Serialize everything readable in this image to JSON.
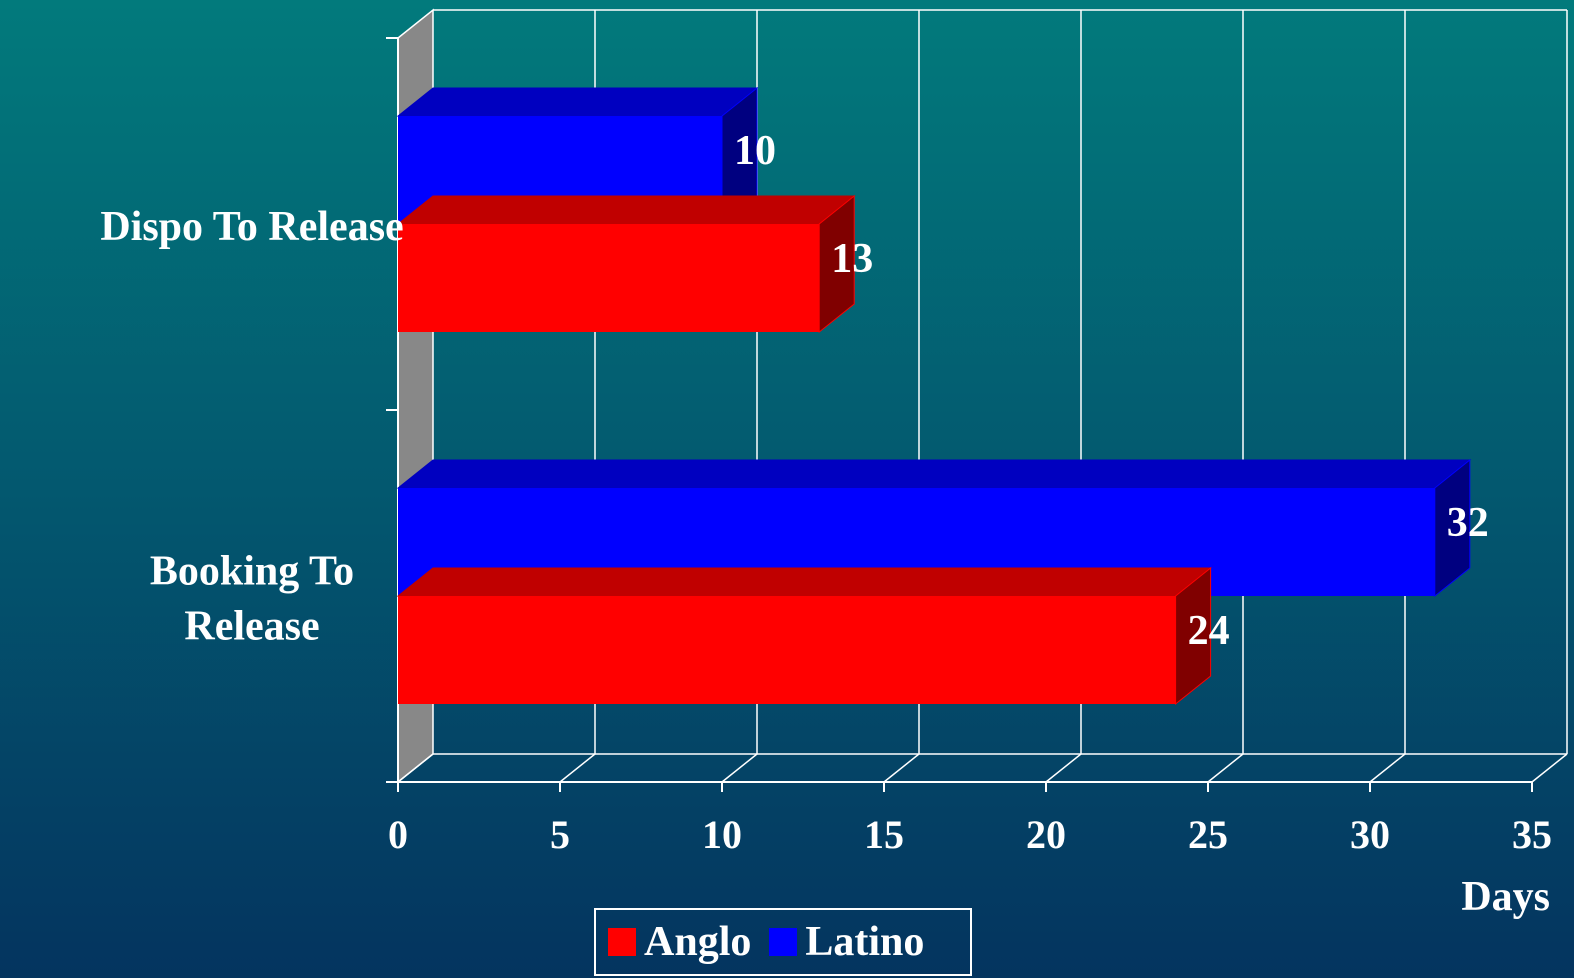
{
  "chart_data": {
    "type": "bar",
    "orientation": "horizontal",
    "style": "3d",
    "categories": [
      "Dispo To Release",
      "Booking To Release"
    ],
    "category_labels": [
      [
        "Dispo To Release"
      ],
      [
        "Booking To",
        "Release"
      ]
    ],
    "series": [
      {
        "name": "Anglo",
        "values": [
          13,
          24
        ],
        "color": "#ff0000",
        "side_color": "#800000",
        "top_color": "#c00000"
      },
      {
        "name": "Latino",
        "values": [
          10,
          32
        ],
        "color": "#0000ff",
        "side_color": "#000080",
        "top_color": "#0000c0"
      }
    ],
    "xlabel": "Days",
    "xlim": [
      0,
      35
    ],
    "xticks": [
      0,
      5,
      10,
      15,
      20,
      25,
      30,
      35
    ],
    "grid": true,
    "legend": "bottom"
  },
  "colors": {
    "background_top": "#027a7c",
    "background_bottom": "#04345f",
    "text": "#ffffff",
    "wall": "#888888"
  }
}
